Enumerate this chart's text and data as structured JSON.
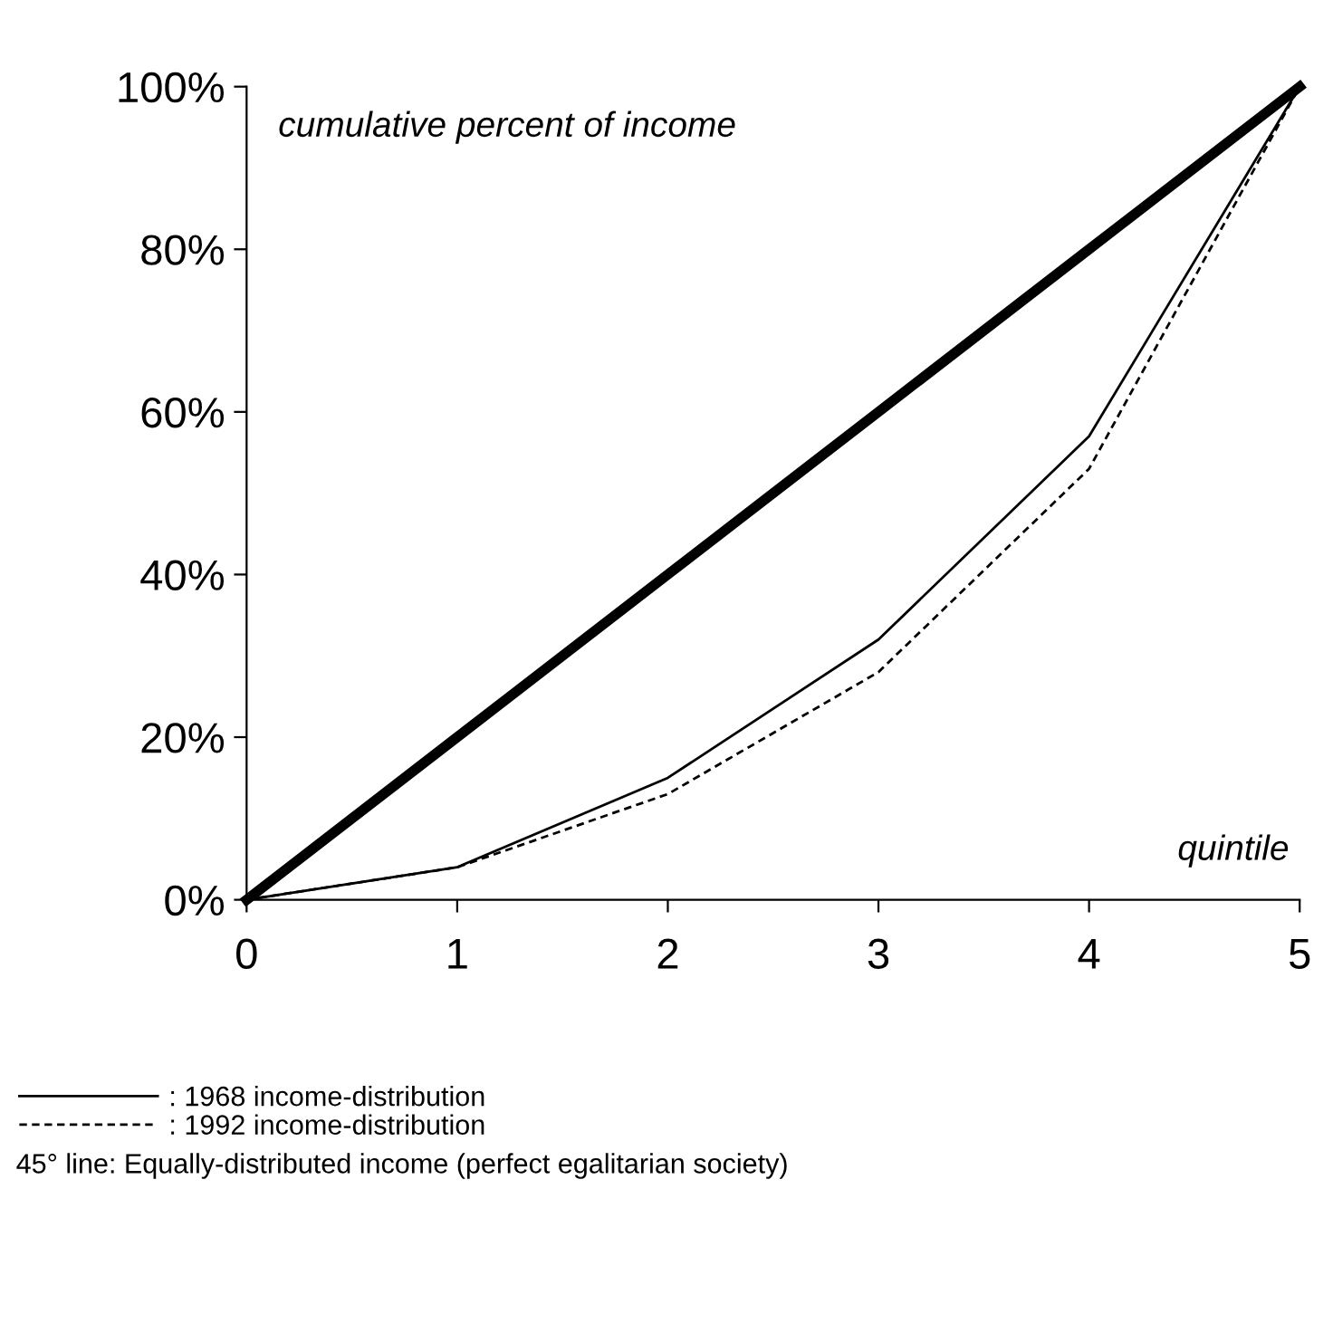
{
  "chart_data": {
    "type": "line",
    "xlabel": "quintile",
    "ylabel": "cumulative percent of income",
    "x": [
      0,
      1,
      2,
      3,
      4,
      5
    ],
    "series": [
      {
        "values": [
          0,
          20,
          40,
          60,
          80,
          100
        ],
        "color": "#000000",
        "line_style": "solid"
      },
      {
        "name": ": 1968 income-distribution",
        "values": [
          0,
          4,
          15,
          32,
          57,
          100
        ],
        "color": "#000000",
        "line_style": "solid"
      },
      {
        "name": ": 1992 income-distribution",
        "values": [
          0,
          4,
          13,
          28,
          53,
          100
        ],
        "color": "#000000",
        "line_style": "dashed"
      }
    ],
    "xlim": [
      0,
      5
    ],
    "ylim": [
      0,
      100
    ],
    "xticks": [
      0,
      1,
      2,
      3,
      4,
      5
    ],
    "yticks": [
      {
        "value": 0,
        "label": "0%"
      },
      {
        "value": 20,
        "label": "20%"
      },
      {
        "value": 40,
        "label": "40%"
      },
      {
        "value": 60,
        "label": "60%"
      },
      {
        "value": 80,
        "label": "80%"
      },
      {
        "value": 100,
        "label": "100%"
      }
    ],
    "annotations": [
      "45° line: Equally-distributed income (perfect egalitarian society)"
    ],
    "legend": "bottom",
    "grid": false,
    "marker": "none"
  }
}
